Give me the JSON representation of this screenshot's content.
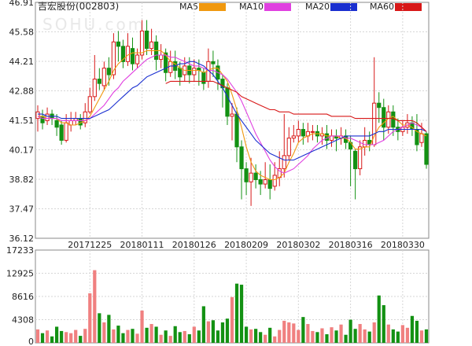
{
  "title": "吉宏股份(002803)",
  "watermark": "SOHU.com",
  "legend": [
    {
      "label": "MA5",
      "color": "#f0980f"
    },
    {
      "label": "MA10",
      "color": "#e040e0"
    },
    {
      "label": "MA20",
      "color": "#1a2fd0"
    },
    {
      "label": "MA60",
      "color": "#d81818"
    }
  ],
  "chart_data": [
    {
      "type": "candlestick",
      "title": "吉宏股份(002803)",
      "ylim": [
        36.12,
        46.91
      ],
      "yticks": [
        "46.91",
        "45.58",
        "44.21",
        "42.88",
        "41.51",
        "40.17",
        "38.82",
        "37.47",
        "36.12"
      ],
      "xticks": [
        "20171225",
        "20180111",
        "20180126",
        "20180209",
        "20180302",
        "20180316",
        "20180330"
      ],
      "xtick_index": [
        11,
        22,
        33,
        44,
        55,
        66,
        77
      ],
      "up_color": "#d81818",
      "down_color": "#139113",
      "candles": [
        [
          41.6,
          41.9,
          42.2,
          41.0
        ],
        [
          41.7,
          41.4,
          42.0,
          41.1
        ],
        [
          41.5,
          41.8,
          42.1,
          41.3
        ],
        [
          41.8,
          41.6,
          42.0,
          41.3
        ],
        [
          41.5,
          41.2,
          41.8,
          40.8
        ],
        [
          41.3,
          40.6,
          41.5,
          40.4
        ],
        [
          40.6,
          41.4,
          41.8,
          40.5
        ],
        [
          41.3,
          41.5,
          41.9,
          41.0
        ],
        [
          41.5,
          41.6,
          41.9,
          41.3
        ],
        [
          41.6,
          41.3,
          41.8,
          41.1
        ],
        [
          41.4,
          41.9,
          42.3,
          41.2
        ],
        [
          41.9,
          42.6,
          43.0,
          41.8
        ],
        [
          42.6,
          43.4,
          44.5,
          42.4
        ],
        [
          43.4,
          43.2,
          43.9,
          42.9
        ],
        [
          43.1,
          43.9,
          44.2,
          42.9
        ],
        [
          43.9,
          43.6,
          44.4,
          43.1
        ],
        [
          43.6,
          45.1,
          45.5,
          43.4
        ],
        [
          45.1,
          44.9,
          45.6,
          44.2
        ],
        [
          44.9,
          44.2,
          45.2,
          43.9
        ],
        [
          44.2,
          44.9,
          45.5,
          44.0
        ],
        [
          44.8,
          44.1,
          45.3,
          43.8
        ],
        [
          44.1,
          44.5,
          44.8,
          43.9
        ],
        [
          44.5,
          45.6,
          46.1,
          44.3
        ],
        [
          45.6,
          44.8,
          46.1,
          44.5
        ],
        [
          44.8,
          45.1,
          45.7,
          44.5
        ],
        [
          45.1,
          44.3,
          45.4,
          43.8
        ],
        [
          44.3,
          44.5,
          45.0,
          43.9
        ],
        [
          44.6,
          43.7,
          44.8,
          43.3
        ],
        [
          43.7,
          44.2,
          44.7,
          43.5
        ],
        [
          44.2,
          43.8,
          44.7,
          43.4
        ],
        [
          43.9,
          43.5,
          44.2,
          43.1
        ],
        [
          43.6,
          44.0,
          44.4,
          43.3
        ],
        [
          44.0,
          43.6,
          44.4,
          43.2
        ],
        [
          43.6,
          43.9,
          44.3,
          43.3
        ],
        [
          43.9,
          43.8,
          44.3,
          43.1
        ],
        [
          43.7,
          43.2,
          43.9,
          42.9
        ],
        [
          43.3,
          44.2,
          44.8,
          43.0
        ],
        [
          44.2,
          44.1,
          44.7,
          43.5
        ],
        [
          44.0,
          43.4,
          44.3,
          42.9
        ],
        [
          43.4,
          43.0,
          43.6,
          42.1
        ],
        [
          43.0,
          41.7,
          43.2,
          41.3
        ],
        [
          41.7,
          41.8,
          42.3,
          40.6
        ],
        [
          41.8,
          40.3,
          42.1,
          39.6
        ],
        [
          40.3,
          39.3,
          40.6,
          37.9
        ],
        [
          39.3,
          38.7,
          39.6,
          38.1
        ],
        [
          38.7,
          39.1,
          39.8,
          37.6
        ],
        [
          39.1,
          38.8,
          39.5,
          38.4
        ],
        [
          38.8,
          38.6,
          39.2,
          38.1
        ],
        [
          38.6,
          38.8,
          39.6,
          38.4
        ],
        [
          38.8,
          38.4,
          39.5,
          37.9
        ],
        [
          38.5,
          39.0,
          39.6,
          38.3
        ],
        [
          38.9,
          39.3,
          40.1,
          38.5
        ],
        [
          39.3,
          39.9,
          41.8,
          38.9
        ],
        [
          39.9,
          40.7,
          41.2,
          39.7
        ],
        [
          40.7,
          40.8,
          41.3,
          40.5
        ],
        [
          40.8,
          41.1,
          41.5,
          40.5
        ],
        [
          41.1,
          40.8,
          41.4,
          40.4
        ],
        [
          40.8,
          41.0,
          41.4,
          40.5
        ],
        [
          41.0,
          41.0,
          41.3,
          40.6
        ],
        [
          41.0,
          40.8,
          41.3,
          40.5
        ],
        [
          40.8,
          40.9,
          41.2,
          40.4
        ],
        [
          40.9,
          40.6,
          41.3,
          40.2
        ],
        [
          40.6,
          40.8,
          41.1,
          40.3
        ],
        [
          40.8,
          40.7,
          41.1,
          40.1
        ],
        [
          40.7,
          40.8,
          41.2,
          40.4
        ],
        [
          40.8,
          40.5,
          41.1,
          40.2
        ],
        [
          40.5,
          40.2,
          40.8,
          38.5
        ],
        [
          40.1,
          39.3,
          40.2,
          37.9
        ],
        [
          39.3,
          40.3,
          40.6,
          39.0
        ],
        [
          40.3,
          40.6,
          41.2,
          39.9
        ],
        [
          40.6,
          40.4,
          41.0,
          40.1
        ],
        [
          40.4,
          42.3,
          44.4,
          40.3
        ],
        [
          42.3,
          42.1,
          42.8,
          41.4
        ],
        [
          42.1,
          41.2,
          42.5,
          40.6
        ],
        [
          41.2,
          41.9,
          42.2,
          40.9
        ],
        [
          41.9,
          41.2,
          42.2,
          40.8
        ],
        [
          41.2,
          41.0,
          41.6,
          40.6
        ],
        [
          41.0,
          41.2,
          41.5,
          40.8
        ],
        [
          41.2,
          41.4,
          41.8,
          40.9
        ],
        [
          41.4,
          41.1,
          41.7,
          40.8
        ],
        [
          41.1,
          40.4,
          41.8,
          40.1
        ],
        [
          40.5,
          40.9,
          41.4,
          40.3
        ],
        [
          40.9,
          39.5,
          41.0,
          39.3
        ]
      ],
      "ma": [
        {
          "name": "MA5",
          "color": "#f0980f",
          "values": [
            41.7,
            41.7,
            41.6,
            41.6,
            41.6,
            41.4,
            41.4,
            41.3,
            41.3,
            41.4,
            41.5,
            41.7,
            42.1,
            42.5,
            42.9,
            43.3,
            43.8,
            44.1,
            44.3,
            44.5,
            44.6,
            44.6,
            44.6,
            44.7,
            44.7,
            44.7,
            44.7,
            44.5,
            44.2,
            44.1,
            43.9,
            43.8,
            43.8,
            43.8,
            43.8,
            43.7,
            43.8,
            43.9,
            43.9,
            43.6,
            43.3,
            42.7,
            42.0,
            41.2,
            40.3,
            39.6,
            39.2,
            39.0,
            38.9,
            38.8,
            38.8,
            38.9,
            39.1,
            39.6,
            40.0,
            40.5,
            40.7,
            40.8,
            40.9,
            40.9,
            40.9,
            40.8,
            40.8,
            40.8,
            40.7,
            40.7,
            40.5,
            40.2,
            40.2,
            40.3,
            40.3,
            40.8,
            41.2,
            41.4,
            41.6,
            41.7,
            41.5,
            41.3,
            41.3,
            41.2,
            41.0,
            40.9,
            40.8
          ]
        },
        {
          "name": "MA10",
          "color": "#e040e0",
          "values": [
            41.7,
            41.6,
            41.6,
            41.6,
            41.6,
            41.5,
            41.5,
            41.5,
            41.5,
            41.5,
            41.5,
            41.6,
            41.8,
            42.0,
            42.2,
            42.5,
            42.8,
            43.0,
            43.3,
            43.5,
            43.7,
            43.9,
            44.1,
            44.3,
            44.4,
            44.5,
            44.5,
            44.5,
            44.4,
            44.4,
            44.3,
            44.2,
            44.1,
            44.0,
            44.0,
            43.9,
            43.8,
            43.8,
            43.7,
            43.6,
            43.4,
            43.1,
            42.8,
            42.4,
            41.9,
            41.4,
            40.9,
            40.5,
            40.1,
            39.7,
            39.4,
            39.2,
            39.1,
            39.2,
            39.3,
            39.5,
            39.7,
            39.9,
            40.2,
            40.4,
            40.6,
            40.7,
            40.8,
            40.8,
            40.8,
            40.7,
            40.7,
            40.6,
            40.5,
            40.4,
            40.4,
            40.4,
            40.5,
            40.6,
            40.8,
            41.0,
            41.1,
            41.2,
            41.3,
            41.4,
            41.3,
            41.2,
            41.0
          ]
        },
        {
          "name": "MA20",
          "color": "#1a2fd0",
          "values": [
            41.8,
            41.8,
            41.7,
            41.7,
            41.7,
            41.6,
            41.6,
            41.6,
            41.6,
            41.6,
            41.6,
            41.6,
            41.7,
            41.8,
            41.9,
            42.0,
            42.2,
            42.4,
            42.6,
            42.8,
            43.0,
            43.1,
            43.3,
            43.5,
            43.6,
            43.7,
            43.8,
            43.9,
            44.0,
            44.0,
            44.1,
            44.1,
            44.2,
            44.2,
            44.1,
            44.0,
            43.8,
            43.6,
            43.3,
            43.0,
            42.6,
            42.2,
            41.8,
            41.5,
            41.2,
            40.9,
            40.6,
            40.4,
            40.2,
            40.0,
            39.9,
            39.8,
            39.7,
            39.7,
            39.7,
            39.8,
            39.9,
            40.0,
            40.1,
            40.2,
            40.3,
            40.4,
            40.5,
            40.6,
            40.7,
            40.8,
            40.8,
            40.8,
            40.8,
            40.8,
            40.8,
            40.9,
            41.0,
            41.0,
            41.1,
            41.1,
            41.1,
            41.1,
            41.1,
            41.1,
            41.1,
            41.1,
            41.0
          ]
        },
        {
          "name": "MA60",
          "color": "#d81818",
          "values": [
            null,
            null,
            null,
            null,
            null,
            null,
            null,
            null,
            null,
            null,
            null,
            null,
            null,
            null,
            null,
            null,
            null,
            null,
            null,
            null,
            null,
            null,
            null,
            null,
            null,
            null,
            null,
            43.2,
            43.3,
            43.3,
            43.3,
            43.3,
            43.3,
            43.3,
            43.3,
            43.3,
            43.3,
            43.3,
            43.2,
            43.1,
            43.0,
            42.9,
            42.8,
            42.6,
            42.5,
            42.4,
            42.3,
            42.2,
            42.1,
            42.0,
            42.0,
            41.9,
            41.9,
            41.9,
            41.8,
            41.8,
            41.8,
            41.8,
            41.8,
            41.8,
            41.8,
            41.8,
            41.7,
            41.7,
            41.7,
            41.7,
            41.7,
            41.6,
            41.6,
            41.6,
            41.6,
            41.6,
            41.6,
            41.6,
            41.6,
            41.6,
            41.5,
            41.5,
            41.5,
            41.5,
            41.4,
            41.2,
            41.0
          ]
        }
      ]
    },
    {
      "type": "bar",
      "title": "",
      "ylim": [
        0,
        17233
      ],
      "yticks": [
        "17233",
        "12925",
        "8616",
        "4308",
        "0"
      ],
      "values": [
        2500,
        1800,
        2300,
        1200,
        3000,
        2200,
        2000,
        1800,
        2400,
        1300,
        2600,
        9200,
        13500,
        5500,
        3800,
        5200,
        2500,
        3200,
        1800,
        2400,
        2600,
        1700,
        6000,
        2800,
        3500,
        3000,
        1500,
        2300,
        1300,
        3100,
        2000,
        2200,
        1600,
        3000,
        2300,
        6800,
        4000,
        4200,
        2300,
        3800,
        4500,
        8500,
        11000,
        10800,
        3000,
        2500,
        2600,
        2000,
        1500,
        2800,
        1200,
        2400,
        4100,
        3800,
        3600,
        2400,
        4800,
        3500,
        2200,
        2000,
        2700,
        1600,
        2900,
        2300,
        3400,
        1500,
        4300,
        2600,
        3500,
        2500,
        2100,
        3800,
        8800,
        7000,
        3400,
        2500,
        2100,
        3300,
        2800,
        5000,
        4100,
        2300,
        2500
      ]
    }
  ]
}
